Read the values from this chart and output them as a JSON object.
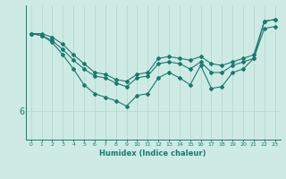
{
  "xlabel": "Humidex (Indice chaleur)",
  "background_color": "#ceeae4",
  "line_color": "#1a7a6e",
  "grid_color": "#b8d8d2",
  "x_ticks": [
    0,
    1,
    2,
    3,
    4,
    5,
    6,
    7,
    8,
    9,
    10,
    11,
    12,
    13,
    14,
    15,
    16,
    17,
    18,
    19,
    20,
    21,
    22,
    23
  ],
  "y_tick_label": "6",
  "y_tick_pos": 6,
  "series1": [
    8.2,
    8.2,
    8.1,
    7.9,
    7.6,
    7.35,
    7.1,
    7.05,
    6.9,
    6.85,
    7.05,
    7.1,
    7.5,
    7.55,
    7.5,
    7.45,
    7.55,
    7.35,
    7.3,
    7.4,
    7.5,
    7.6,
    8.55,
    8.6
  ],
  "series2": [
    8.2,
    8.15,
    7.95,
    7.6,
    7.2,
    6.75,
    6.5,
    6.4,
    6.3,
    6.15,
    6.45,
    6.5,
    6.95,
    7.1,
    6.95,
    6.75,
    7.3,
    6.65,
    6.7,
    7.1,
    7.2,
    7.5,
    8.55,
    8.6
  ],
  "series3": [
    8.2,
    8.15,
    8.0,
    7.75,
    7.45,
    7.2,
    7.0,
    6.95,
    6.8,
    6.7,
    6.95,
    7.0,
    7.35,
    7.4,
    7.35,
    7.2,
    7.4,
    7.1,
    7.1,
    7.3,
    7.4,
    7.5,
    8.35,
    8.4
  ],
  "xmin": -0.5,
  "xmax": 23.5,
  "ymin": 5.2,
  "ymax": 9.0
}
